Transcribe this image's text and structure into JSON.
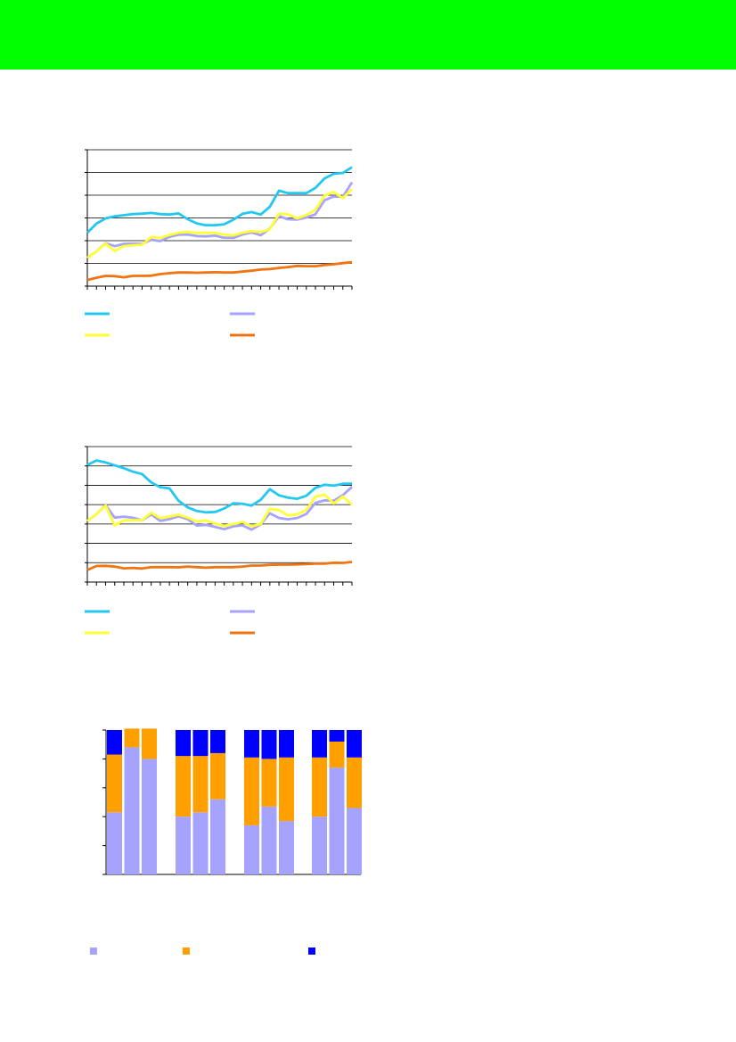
{
  "header": {
    "color": "#00ff00"
  },
  "chart_data": [
    {
      "type": "line",
      "title": "",
      "ylim": [
        0,
        6
      ],
      "grid": true,
      "legend": "bottom",
      "series": [
        {
          "color": "#22c8ef",
          "values": [
            2.35,
            2.75,
            2.98,
            3.07,
            3.12,
            3.17,
            3.19,
            3.22,
            3.17,
            3.15,
            3.2,
            2.94,
            2.76,
            2.68,
            2.68,
            2.72,
            2.92,
            3.18,
            3.26,
            3.15,
            3.49,
            4.2,
            4.09,
            4.09,
            4.09,
            4.32,
            4.74,
            4.94,
            4.98,
            5.23
          ]
        },
        {
          "color": "#a6a3ff",
          "values": [
            1.25,
            1.52,
            1.89,
            1.76,
            1.86,
            1.87,
            1.86,
            2.04,
            1.98,
            2.17,
            2.26,
            2.27,
            2.2,
            2.19,
            2.22,
            2.13,
            2.12,
            2.27,
            2.36,
            2.24,
            2.53,
            3.08,
            2.94,
            2.93,
            3.02,
            3.16,
            3.78,
            3.94,
            3.93,
            4.57
          ]
        },
        {
          "color": "#ffff33",
          "values": null
        },
        {
          "color": "#f07412",
          "values": [
            0.27,
            0.37,
            0.45,
            0.44,
            0.39,
            0.45,
            0.45,
            0.46,
            0.53,
            0.57,
            0.6,
            0.6,
            0.59,
            0.6,
            0.61,
            0.6,
            0.6,
            0.64,
            0.68,
            0.73,
            0.75,
            0.8,
            0.84,
            0.89,
            0.88,
            0.88,
            0.93,
            0.96,
            1.01,
            1.05
          ]
        }
      ]
    },
    {
      "type": "line",
      "title": "",
      "ylim": [
        0,
        7
      ],
      "grid": true,
      "legend": "bottom",
      "series": [
        {
          "color": "#22c8ef",
          "values": [
            6.05,
            6.28,
            6.18,
            6.03,
            5.88,
            5.7,
            5.58,
            5.15,
            4.9,
            4.84,
            4.2,
            3.86,
            3.67,
            3.6,
            3.62,
            3.8,
            4.07,
            4.05,
            3.95,
            4.25,
            4.8,
            4.48,
            4.36,
            4.3,
            4.46,
            4.87,
            5.03,
            4.98,
            5.08,
            5.08
          ]
        },
        {
          "color": "#a6a3ff",
          "values": [
            3.15,
            3.5,
            3.98,
            3.33,
            3.38,
            3.32,
            3.19,
            3.49,
            3.16,
            3.25,
            3.4,
            3.24,
            2.92,
            2.95,
            2.85,
            2.73,
            2.88,
            2.93,
            2.71,
            2.98,
            3.55,
            3.31,
            3.24,
            3.31,
            3.52,
            4.09,
            4.22,
            4.2,
            4.49,
            4.92
          ]
        },
        {
          "color": "#ffff33",
          "values": null
        },
        {
          "color": "#f07412",
          "values": [
            0.62,
            0.83,
            0.84,
            0.8,
            0.71,
            0.73,
            0.7,
            0.77,
            0.77,
            0.77,
            0.76,
            0.8,
            0.77,
            0.74,
            0.77,
            0.77,
            0.77,
            0.8,
            0.85,
            0.85,
            0.89,
            0.9,
            0.9,
            0.91,
            0.93,
            0.95,
            0.95,
            1.0,
            0.99,
            1.04
          ]
        }
      ]
    },
    {
      "type": "bar",
      "stacked": true,
      "title": "",
      "ylim": [
        0,
        100
      ],
      "grid": false,
      "legend": "bottom",
      "series": [
        {
          "color": "#a6a3ff",
          "values": [
            43,
            88,
            80,
            40,
            43,
            52,
            34,
            47,
            37,
            40,
            74,
            46
          ]
        },
        {
          "color": "#ff9f00",
          "values": [
            40,
            13,
            21,
            42,
            39,
            32,
            47,
            33,
            44,
            41,
            18,
            35
          ]
        },
        {
          "color": "#0000ff",
          "values": [
            17,
            0,
            0,
            18,
            18,
            16,
            19,
            20,
            19,
            19,
            8,
            19
          ]
        }
      ]
    }
  ]
}
